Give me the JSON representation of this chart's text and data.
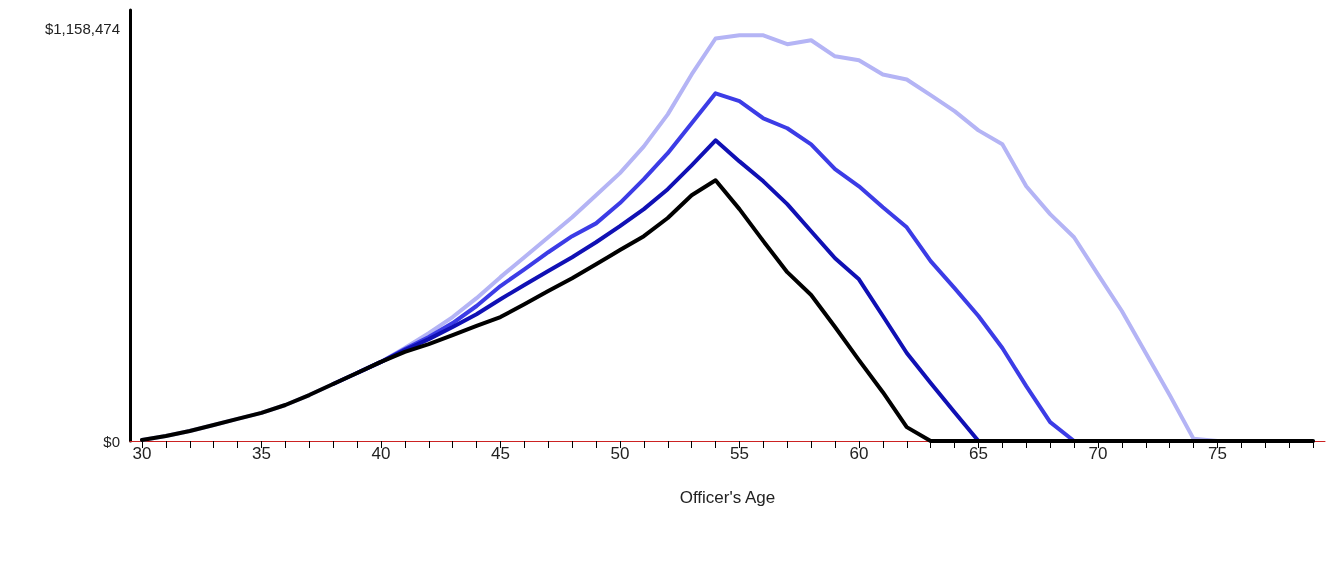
{
  "chart_data": {
    "type": "line",
    "xlabel": "Officer's Age",
    "x": [
      30,
      31,
      32,
      33,
      34,
      35,
      36,
      37,
      38,
      39,
      40,
      41,
      42,
      43,
      44,
      45,
      46,
      47,
      48,
      49,
      50,
      51,
      52,
      53,
      54,
      55,
      56,
      57,
      58,
      59,
      60,
      61,
      62,
      63,
      64,
      65,
      66,
      67,
      68,
      69,
      70,
      71,
      72,
      73,
      74,
      75,
      76,
      77,
      78,
      79
    ],
    "series": [
      {
        "color": "#b4b4f5",
        "values": [
          3000,
          14000,
          28000,
          45000,
          62000,
          79000,
          101000,
          129000,
          160000,
          191000,
          222000,
          261000,
          303000,
          348000,
          401000,
          460000,
          516000,
          572000,
          628000,
          690000,
          752000,
          827000,
          917000,
          1029000,
          1130000,
          1139000,
          1139000,
          1114000,
          1125000,
          1080000,
          1069000,
          1029000,
          1015000,
          971000,
          926000,
          872000,
          833000,
          715000,
          637000,
          572000,
          468000,
          365000,
          247000,
          129000,
          6000,
          0,
          0,
          null,
          null,
          null
        ]
      },
      {
        "color": "#3c3ce6",
        "values": [
          null,
          null,
          null,
          null,
          null,
          null,
          null,
          null,
          null,
          191000,
          222000,
          258000,
          292000,
          331000,
          379000,
          435000,
          482000,
          530000,
          575000,
          611000,
          668000,
          735000,
          808000,
          892000,
          976000,
          954000,
          906000,
          878000,
          833000,
          763000,
          715000,
          656000,
          600000,
          505000,
          429000,
          351000,
          261000,
          154000,
          53000,
          0,
          0,
          null,
          null,
          null,
          null,
          null,
          null,
          null,
          null,
          null
        ]
      },
      {
        "color": "#1010b4",
        "values": [
          null,
          null,
          null,
          null,
          null,
          null,
          null,
          null,
          160000,
          191000,
          222000,
          255000,
          286000,
          320000,
          356000,
          398000,
          438000,
          477000,
          516000,
          558000,
          603000,
          651000,
          707000,
          774000,
          844000,
          785000,
          729000,
          665000,
          589000,
          513000,
          454000,
          351000,
          247000,
          163000,
          81000,
          0,
          0,
          0,
          0,
          0,
          0,
          null,
          null,
          null,
          null,
          null,
          null,
          null,
          null,
          null
        ]
      },
      {
        "color": "#000000",
        "values": [
          3000,
          14000,
          28000,
          45000,
          62000,
          79000,
          101000,
          129000,
          160000,
          191000,
          222000,
          250000,
          272000,
          297000,
          323000,
          348000,
          384000,
          421000,
          457000,
          496000,
          536000,
          575000,
          626000,
          690000,
          732000,
          651000,
          561000,
          474000,
          410000,
          320000,
          227000,
          137000,
          39000,
          0,
          0,
          0,
          0,
          0,
          0,
          0,
          0,
          0,
          0,
          0,
          0,
          0,
          0,
          0,
          0,
          0
        ]
      }
    ],
    "xlim": [
      29.5,
      79.5
    ],
    "xticks": [
      30,
      {
        "value": 31,
        "label": null
      },
      {
        "value": 32,
        "label": null
      },
      {
        "value": 33,
        "label": null
      },
      {
        "value": 34,
        "label": null
      },
      35,
      {
        "value": 36,
        "label": null
      },
      {
        "value": 37,
        "label": null
      },
      {
        "value": 38,
        "label": null
      },
      {
        "value": 39,
        "label": null
      },
      40,
      {
        "value": 41,
        "label": null
      },
      {
        "value": 42,
        "label": null
      },
      {
        "value": 43,
        "label": null
      },
      {
        "value": 44,
        "label": null
      },
      45,
      {
        "value": 46,
        "label": null
      },
      {
        "value": 47,
        "label": null
      },
      {
        "value": 48,
        "label": null
      },
      {
        "value": 49,
        "label": null
      },
      50,
      {
        "value": 51,
        "label": null
      },
      {
        "value": 52,
        "label": null
      },
      {
        "value": 53,
        "label": null
      },
      {
        "value": 54,
        "label": null
      },
      55,
      {
        "value": 56,
        "label": null
      },
      {
        "value": 57,
        "label": null
      },
      {
        "value": 58,
        "label": null
      },
      {
        "value": 59,
        "label": null
      },
      60,
      {
        "value": 61,
        "label": null
      },
      {
        "value": 62,
        "label": null
      },
      {
        "value": 63,
        "label": null
      },
      {
        "value": 64,
        "label": null
      },
      65,
      {
        "value": 66,
        "label": null
      },
      {
        "value": 67,
        "label": null
      },
      {
        "value": 68,
        "label": null
      },
      {
        "value": 69,
        "label": null
      },
      70,
      {
        "value": 71,
        "label": null
      },
      {
        "value": 72,
        "label": null
      },
      {
        "value": 73,
        "label": null
      },
      {
        "value": 74,
        "label": null
      },
      75,
      {
        "value": 76,
        "label": null
      },
      {
        "value": 77,
        "label": null
      },
      {
        "value": 78,
        "label": null
      },
      {
        "value": 79,
        "label": null
      }
    ],
    "ylim": [
      0,
      1210000
    ],
    "yticks": [
      {
        "value": 0,
        "label": "$0"
      },
      {
        "value": 1158474,
        "label": "$1,158,474"
      }
    ],
    "grid": false,
    "marker": "none",
    "line_style": "solid"
  }
}
